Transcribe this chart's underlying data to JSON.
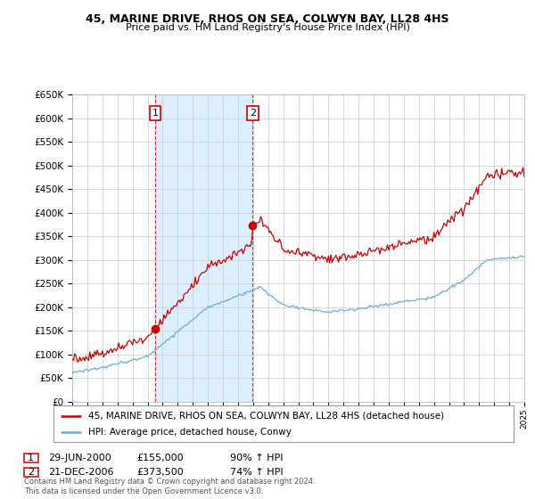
{
  "title": "45, MARINE DRIVE, RHOS ON SEA, COLWYN BAY, LL28 4HS",
  "subtitle": "Price paid vs. HM Land Registry's House Price Index (HPI)",
  "legend_line1": "45, MARINE DRIVE, RHOS ON SEA, COLWYN BAY, LL28 4HS (detached house)",
  "legend_line2": "HPI: Average price, detached house, Conwy",
  "sale1_label": "1",
  "sale1_date": "29-JUN-2000",
  "sale1_price": "£155,000",
  "sale1_hpi": "90% ↑ HPI",
  "sale1_year": 2000.5,
  "sale1_value": 155000,
  "sale2_label": "2",
  "sale2_date": "21-DEC-2006",
  "sale2_price": "£373,500",
  "sale2_hpi": "74% ↑ HPI",
  "sale2_year": 2006.97,
  "sale2_value": 373500,
  "ylim_min": 0,
  "ylim_max": 650000,
  "ytick_step": 50000,
  "xmin": 1995,
  "xmax": 2025,
  "red_color": "#cc0000",
  "blue_color": "#6baed6",
  "shade_color": "#ddeeff",
  "dashed_red": "#cc0000",
  "background_color": "#ffffff",
  "grid_color": "#cccccc",
  "footnote": "Contains HM Land Registry data © Crown copyright and database right 2024.\nThis data is licensed under the Open Government Licence v3.0."
}
